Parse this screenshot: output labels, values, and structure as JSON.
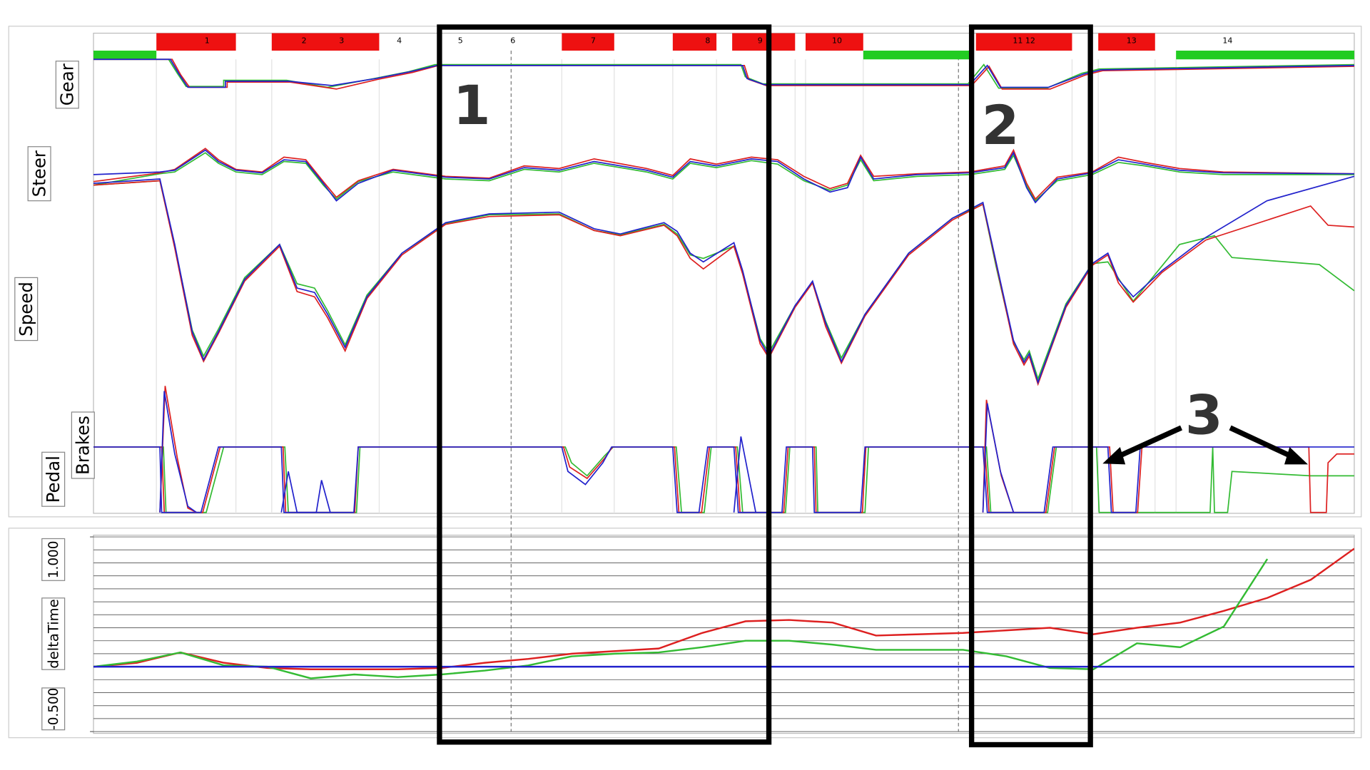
{
  "panel_labels": {
    "gear": "Gear",
    "steer": "Steer",
    "speed": "Speed",
    "pedal": "Pedal",
    "brakes": "Brakes"
  },
  "sectors": [
    "1",
    "2",
    "3",
    "4",
    "5",
    "6",
    "7",
    "8",
    "9",
    "10",
    "11 12",
    "13",
    "14"
  ],
  "annotations": [
    "1",
    "2",
    "3"
  ],
  "chart_data": {
    "type": "line",
    "ylabel": "deltaTime",
    "ylim": [
      -0.5,
      1.0
    ],
    "yticks": [
      {
        "value": 1.0,
        "label": "1.000"
      },
      {
        "value": -0.5,
        "label": "-0.500"
      }
    ],
    "ygrid": [
      -0.5,
      -0.4,
      -0.3,
      -0.2,
      -0.1,
      0,
      0.1,
      0.2,
      0.3,
      0.4,
      0.5,
      0.6,
      0.7,
      0.8,
      0.9,
      1.0
    ],
    "series": [
      {
        "color": "#2222cc",
        "values": [
          0,
          0,
          0,
          0,
          0,
          0,
          0,
          0,
          0,
          0,
          0,
          0,
          0,
          0,
          0,
          0,
          0,
          0,
          0,
          0,
          0,
          0,
          0,
          0,
          0,
          0,
          0,
          0,
          0,
          0
        ]
      },
      {
        "color": "#dd2020",
        "values": [
          0,
          0.03,
          0.11,
          0.03,
          -0.01,
          -0.02,
          -0.02,
          -0.02,
          -0.01,
          0.03,
          0.06,
          0.1,
          0.12,
          0.14,
          0.26,
          0.35,
          0.36,
          0.34,
          0.24,
          0.25,
          0.26,
          0.28,
          0.3,
          0.25,
          0.3,
          0.34,
          0.43,
          0.53,
          0.67,
          0.91
        ]
      },
      {
        "color": "#33bb33",
        "values": [
          0,
          0.04,
          0.11,
          0.01,
          0,
          -0.09,
          -0.06,
          -0.08,
          -0.06,
          -0.03,
          0.01,
          0.08,
          0.1,
          0.11,
          0.15,
          0.2,
          0.2,
          0.17,
          0.13,
          0.13,
          0.13,
          0.08,
          -0.01,
          -0.02,
          0.18,
          0.15,
          0.31,
          0.83,
          null,
          null
        ]
      }
    ]
  }
}
